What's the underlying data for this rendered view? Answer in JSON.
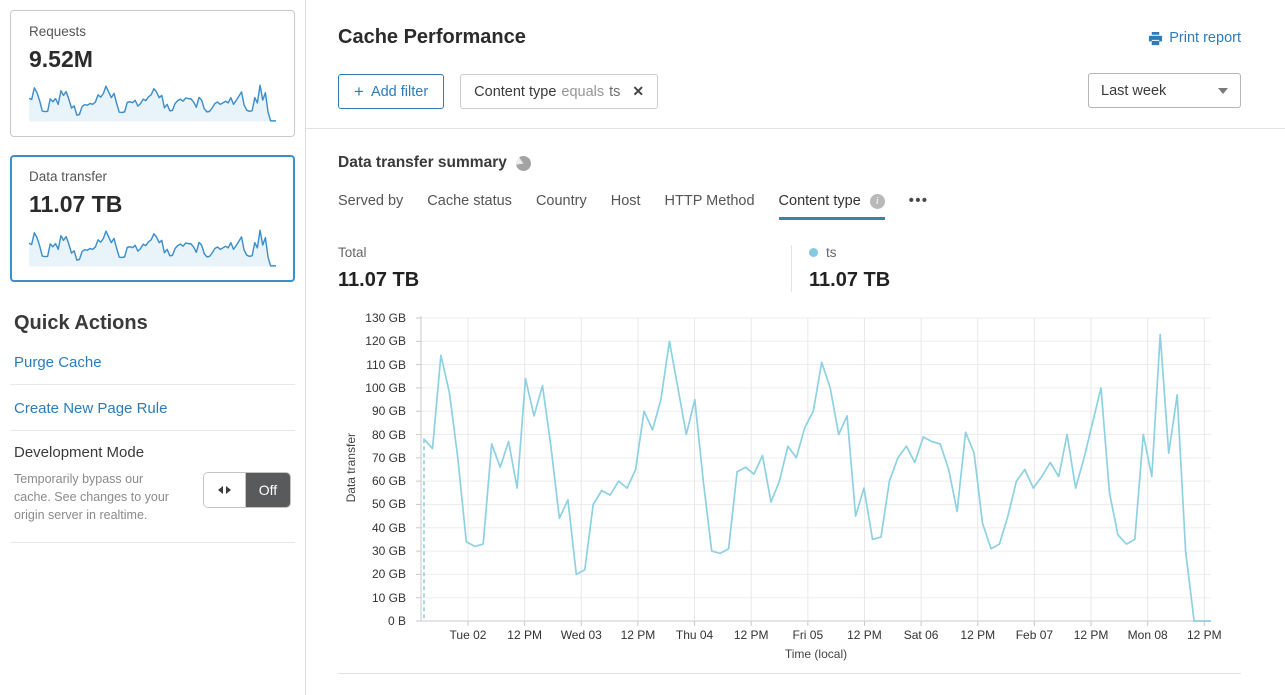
{
  "sidebar": {
    "requests_card": {
      "label": "Requests",
      "value": "9.52M"
    },
    "data_transfer_card": {
      "label": "Data transfer",
      "value": "11.07 TB"
    },
    "sparkline_color": "#3e8fc9",
    "sparkline_fill": "#e9f3fa",
    "quick_actions": {
      "title": "Quick Actions",
      "purge_cache_label": "Purge Cache",
      "create_page_rule_label": "Create New Page Rule",
      "development_mode": {
        "title": "Development Mode",
        "description": "Temporarily bypass our cache. See changes to your origin server in realtime.",
        "toggle_label": "Off"
      }
    }
  },
  "header": {
    "title": "Cache Performance",
    "print_report_label": "Print report",
    "add_filter": {
      "icon": "+",
      "label": "Add filter"
    },
    "filter_chip": {
      "field": "Content type",
      "operator": "equals",
      "value": "ts",
      "close_icon": "✕"
    },
    "time_range": {
      "value": "Last week"
    }
  },
  "summary": {
    "title": "Data transfer summary",
    "tabs": [
      "Served by",
      "Cache status",
      "Country",
      "Host",
      "HTTP Method",
      "Content type"
    ],
    "active_tab": "Content type",
    "more_icon": "•••",
    "total": {
      "label": "Total",
      "value": "11.07 TB"
    },
    "legend": {
      "name": "ts",
      "value": "11.07 TB",
      "color": "#84cadf"
    }
  },
  "chart_data": {
    "type": "line",
    "title": "Data transfer summary",
    "ylabel": "Data transfer",
    "xlabel": "Time (local)",
    "ylim": [
      0,
      130
    ],
    "y_unit": "GB",
    "grid": true,
    "line_color": "#8ed1e1",
    "y_tick_labels": [
      "130 GB",
      "120 GB",
      "110 GB",
      "100 GB",
      "90 GB",
      "80 GB",
      "70 GB",
      "60 GB",
      "50 GB",
      "40 GB",
      "30 GB",
      "20 GB",
      "10 GB",
      "0 B"
    ],
    "x_tick_labels": [
      "Tue 02",
      "12 PM",
      "Wed 03",
      "12 PM",
      "Thu 04",
      "12 PM",
      "Fri 05",
      "12 PM",
      "Sat 06",
      "12 PM",
      "Feb 07",
      "12 PM",
      "Mon 08",
      "12 PM"
    ],
    "series": [
      {
        "name": "ts",
        "unit": "GB",
        "values": [
          78,
          74,
          114,
          98,
          70,
          34,
          32,
          33,
          76,
          66,
          77,
          57,
          104,
          88,
          101,
          75,
          44,
          52,
          20,
          22,
          50,
          56,
          54,
          60,
          57,
          65,
          90,
          82,
          95,
          120,
          100,
          80,
          95,
          60,
          30,
          29,
          31,
          64,
          66,
          63,
          71,
          51,
          60,
          75,
          70,
          83,
          90,
          111,
          100,
          80,
          88,
          45,
          57,
          35,
          36,
          60,
          70,
          75,
          68,
          79,
          77,
          76,
          65,
          47,
          81,
          72,
          42,
          31,
          33,
          45,
          60,
          65,
          57,
          62,
          68,
          62,
          80,
          57,
          70,
          85,
          100,
          55,
          37,
          33,
          35,
          80,
          62,
          123,
          72,
          97,
          30,
          0,
          0,
          0
        ]
      }
    ]
  }
}
